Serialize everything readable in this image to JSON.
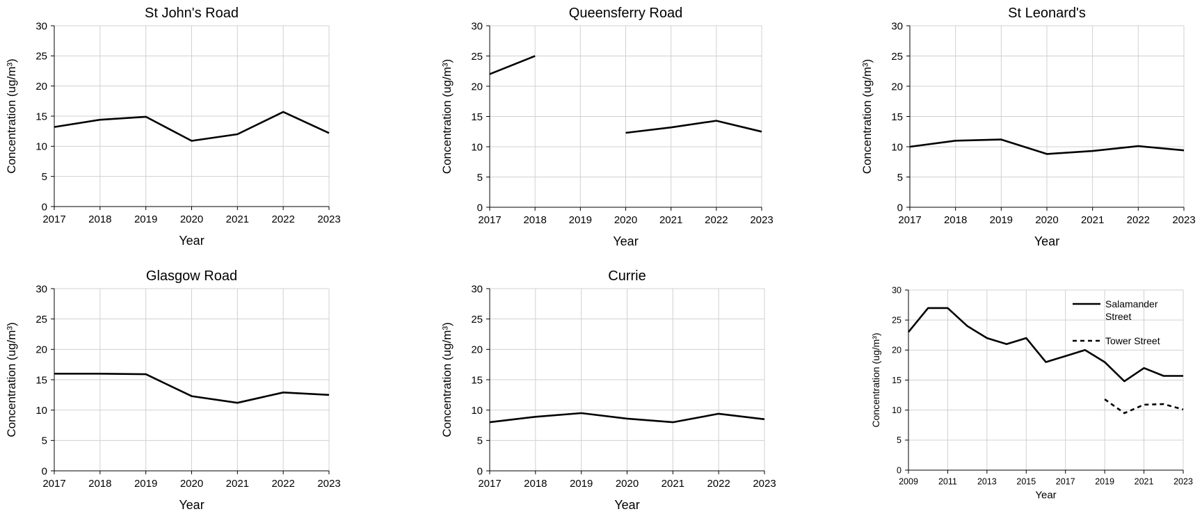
{
  "chart_data": [
    {
      "type": "line",
      "title": "St John's Road",
      "xlabel": "Year",
      "ylabel": "Concentration (ug/m³)",
      "x": [
        2017,
        2018,
        2019,
        2020,
        2021,
        2022,
        2023
      ],
      "ylim": [
        0,
        30
      ],
      "yticks": [
        0,
        5,
        10,
        15,
        20,
        25,
        30
      ],
      "grid": true,
      "series": [
        {
          "values": [
            13.2,
            14.4,
            14.9,
            10.9,
            12.0,
            15.7,
            12.2
          ]
        }
      ]
    },
    {
      "type": "line",
      "title": "Queensferry Road",
      "xlabel": "Year",
      "ylabel": "Concentration (ug/m³)",
      "x": [
        2017,
        2018,
        2019,
        2020,
        2021,
        2022,
        2023
      ],
      "ylim": [
        0,
        30
      ],
      "yticks": [
        0,
        5,
        10,
        15,
        20,
        25,
        30
      ],
      "grid": true,
      "series": [
        {
          "values": [
            22.0,
            25.0,
            null,
            12.3,
            13.2,
            14.3,
            12.5
          ]
        }
      ]
    },
    {
      "type": "line",
      "title": "St Leonard's",
      "xlabel": "Year",
      "ylabel": "Concentration (ug/m³)",
      "x": [
        2017,
        2018,
        2019,
        2020,
        2021,
        2022,
        2023
      ],
      "ylim": [
        0,
        30
      ],
      "yticks": [
        0,
        5,
        10,
        15,
        20,
        25,
        30
      ],
      "grid": true,
      "series": [
        {
          "values": [
            10.0,
            11.0,
            11.2,
            8.8,
            9.3,
            10.1,
            9.4
          ]
        }
      ]
    },
    {
      "type": "line",
      "title": "Glasgow Road",
      "xlabel": "Year",
      "ylabel": "Concentration (ug/m³)",
      "x": [
        2017,
        2018,
        2019,
        2020,
        2021,
        2022,
        2023
      ],
      "ylim": [
        0,
        30
      ],
      "yticks": [
        0,
        5,
        10,
        15,
        20,
        25,
        30
      ],
      "grid": true,
      "series": [
        {
          "values": [
            16.0,
            16.0,
            15.9,
            12.3,
            11.2,
            12.9,
            12.5
          ]
        }
      ]
    },
    {
      "type": "line",
      "title": "Currie",
      "xlabel": "Year",
      "ylabel": "Concentration (ug/m³)",
      "x": [
        2017,
        2018,
        2019,
        2020,
        2021,
        2022,
        2023
      ],
      "ylim": [
        0,
        30
      ],
      "yticks": [
        0,
        5,
        10,
        15,
        20,
        25,
        30
      ],
      "grid": true,
      "series": [
        {
          "values": [
            8.0,
            8.9,
            9.5,
            8.6,
            8.0,
            9.4,
            8.5
          ]
        }
      ]
    },
    {
      "type": "line",
      "title": "",
      "xlabel": "Year",
      "ylabel": "Concentration (ug/m³)",
      "x": [
        2009,
        2010,
        2011,
        2012,
        2013,
        2014,
        2015,
        2016,
        2017,
        2018,
        2019,
        2020,
        2021,
        2022,
        2023
      ],
      "xticks": [
        2009,
        2011,
        2013,
        2015,
        2017,
        2019,
        2021,
        2023
      ],
      "ylim": [
        0,
        30
      ],
      "yticks": [
        0,
        5,
        10,
        15,
        20,
        25,
        30
      ],
      "grid": true,
      "legend": "top-right",
      "series": [
        {
          "name": "Salamander Street",
          "style": "solid",
          "values": [
            23,
            27,
            27,
            24,
            22,
            21,
            22,
            18,
            19,
            20,
            18,
            14.8,
            17,
            15.7,
            15.7
          ]
        },
        {
          "name": "Tower Street",
          "style": "dashed",
          "values": [
            null,
            null,
            null,
            null,
            null,
            null,
            null,
            null,
            null,
            null,
            11.8,
            9.5,
            10.9,
            11.0,
            10.1
          ]
        }
      ]
    }
  ]
}
